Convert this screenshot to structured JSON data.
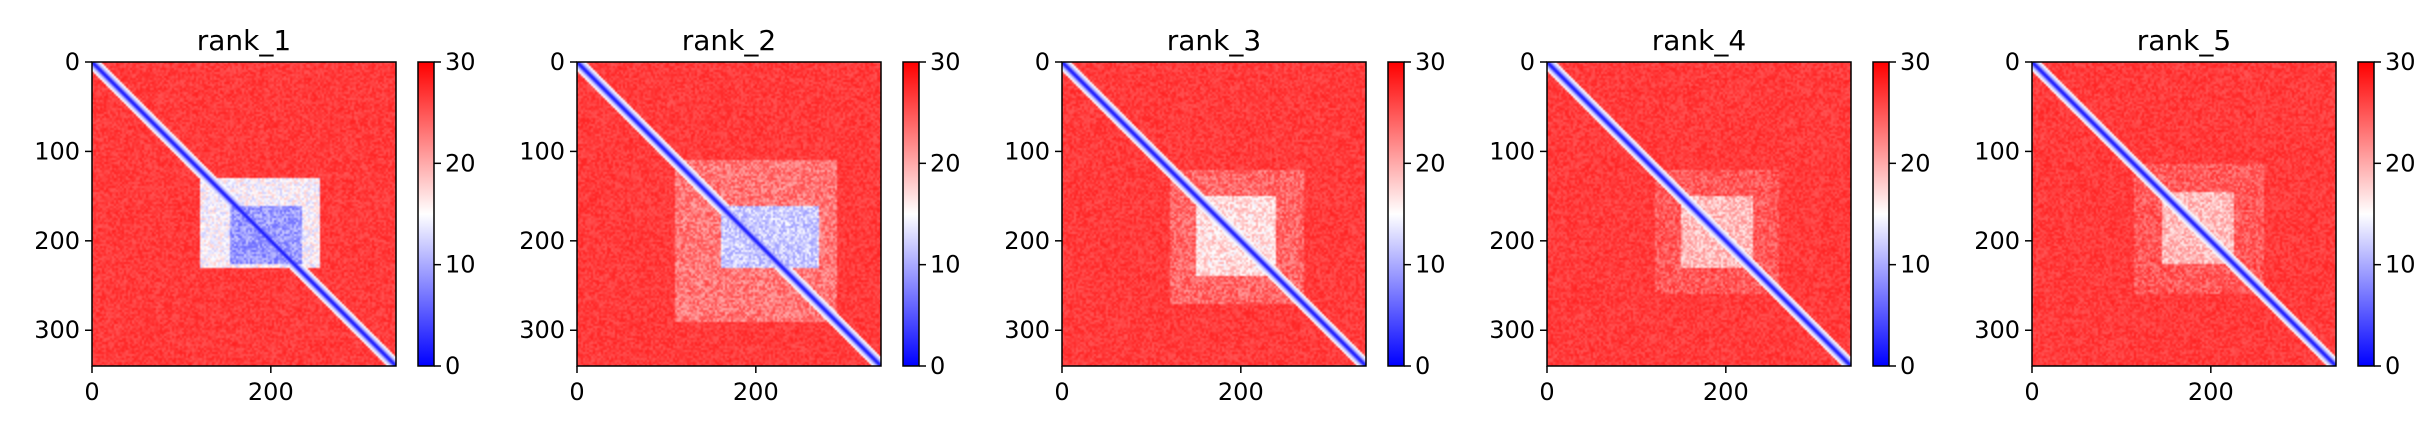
{
  "figure": {
    "panel_count": 5
  },
  "chart_data": [
    {
      "type": "heatmap",
      "title": "rank_1",
      "xlabel": "",
      "ylabel": "",
      "xlim": [
        0,
        340
      ],
      "ylim": [
        340,
        0
      ],
      "x_ticks": [
        0,
        200
      ],
      "y_ticks": [
        0,
        100,
        200,
        300
      ],
      "colorbar": {
        "min": 0,
        "max": 30,
        "ticks": [
          0,
          10,
          20,
          30
        ],
        "colormap": "bwr",
        "low_color": "#0000ff",
        "mid_color": "#ffffff",
        "high_color": "#ff0000"
      },
      "n_residues": 340,
      "diagonal_value": 1,
      "background_value": 28,
      "blocks": [
        {
          "x": [
            120,
            255
          ],
          "y": [
            130,
            230
          ],
          "value": 12
        },
        {
          "x": [
            155,
            235
          ],
          "y": [
            160,
            225
          ],
          "value": 6
        }
      ]
    },
    {
      "type": "heatmap",
      "title": "rank_2",
      "xlabel": "",
      "ylabel": "",
      "xlim": [
        0,
        340
      ],
      "ylim": [
        340,
        0
      ],
      "x_ticks": [
        0,
        200
      ],
      "y_ticks": [
        0,
        100,
        200,
        300
      ],
      "colorbar": {
        "min": 0,
        "max": 30,
        "ticks": [
          0,
          10,
          20,
          30
        ],
        "colormap": "bwr",
        "low_color": "#0000ff",
        "mid_color": "#ffffff",
        "high_color": "#ff0000"
      },
      "n_residues": 340,
      "diagonal_value": 1,
      "background_value": 28,
      "blocks": [
        {
          "x": [
            110,
            290
          ],
          "y": [
            110,
            290
          ],
          "value": 20
        },
        {
          "x": [
            160,
            270
          ],
          "y": [
            160,
            230
          ],
          "value": 9
        }
      ]
    },
    {
      "type": "heatmap",
      "title": "rank_3",
      "xlabel": "",
      "ylabel": "",
      "xlim": [
        0,
        340
      ],
      "ylim": [
        340,
        0
      ],
      "x_ticks": [
        0,
        200
      ],
      "y_ticks": [
        0,
        100,
        200,
        300
      ],
      "colorbar": {
        "min": 0,
        "max": 30,
        "ticks": [
          0,
          10,
          20,
          30
        ],
        "colormap": "bwr",
        "low_color": "#0000ff",
        "mid_color": "#ffffff",
        "high_color": "#ff0000"
      },
      "n_residues": 340,
      "diagonal_value": 1,
      "background_value": 28,
      "blocks": [
        {
          "x": [
            120,
            270
          ],
          "y": [
            120,
            270
          ],
          "value": 21
        },
        {
          "x": [
            150,
            240
          ],
          "y": [
            150,
            240
          ],
          "value": 14
        }
      ]
    },
    {
      "type": "heatmap",
      "title": "rank_4",
      "xlabel": "",
      "ylabel": "",
      "xlim": [
        0,
        340
      ],
      "ylim": [
        340,
        0
      ],
      "x_ticks": [
        0,
        200
      ],
      "y_ticks": [
        0,
        100,
        200,
        300
      ],
      "colorbar": {
        "min": 0,
        "max": 30,
        "ticks": [
          0,
          10,
          20,
          30
        ],
        "colormap": "bwr",
        "low_color": "#0000ff",
        "mid_color": "#ffffff",
        "high_color": "#ff0000"
      },
      "n_residues": 340,
      "diagonal_value": 1,
      "background_value": 28,
      "blocks": [
        {
          "x": [
            120,
            260
          ],
          "y": [
            120,
            260
          ],
          "value": 22
        },
        {
          "x": [
            150,
            230
          ],
          "y": [
            150,
            230
          ],
          "value": 16
        }
      ]
    },
    {
      "type": "heatmap",
      "title": "rank_5",
      "xlabel": "",
      "ylabel": "",
      "xlim": [
        0,
        340
      ],
      "ylim": [
        340,
        0
      ],
      "x_ticks": [
        0,
        200
      ],
      "y_ticks": [
        0,
        100,
        200,
        300
      ],
      "colorbar": {
        "min": 0,
        "max": 30,
        "ticks": [
          0,
          10,
          20,
          30
        ],
        "colormap": "bwr",
        "low_color": "#0000ff",
        "mid_color": "#ffffff",
        "high_color": "#ff0000"
      },
      "n_residues": 340,
      "diagonal_value": 1,
      "background_value": 28,
      "blocks": [
        {
          "x": [
            115,
            260
          ],
          "y": [
            115,
            260
          ],
          "value": 22
        },
        {
          "x": [
            145,
            225
          ],
          "y": [
            145,
            225
          ],
          "value": 16
        }
      ]
    }
  ]
}
